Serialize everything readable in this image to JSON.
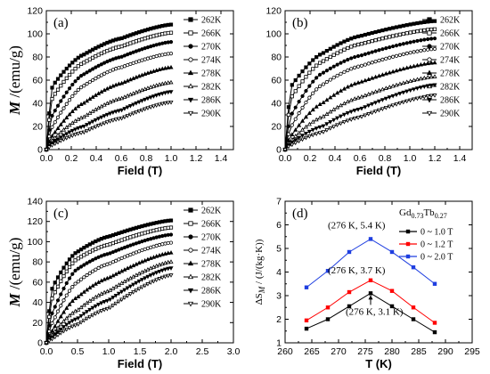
{
  "chart_data": [
    {
      "id": "a",
      "type": "line",
      "panel_label": "(a)",
      "xlabel": "Field (T)",
      "ylabel_var": "M",
      "ylabel_unit": "/(emu/g)",
      "xlim": [
        0.0,
        1.5
      ],
      "ylim": [
        0,
        120
      ],
      "xticks": [
        "0.0",
        "0.2",
        "0.4",
        "0.6",
        "0.8",
        "1.0",
        "1.2",
        "1.4"
      ],
      "yticks": [
        "0",
        "20",
        "40",
        "60",
        "80",
        "100",
        "120"
      ],
      "x_max_data": 1.0,
      "legend_placement": "top-right",
      "series": [
        {
          "name": "262K",
          "marker": "square-filled",
          "h": [
            0.05,
            0.3,
            0.6,
            1.0
          ],
          "m": [
            55,
            82,
            96,
            108
          ]
        },
        {
          "name": "266K",
          "marker": "square-open",
          "h": [
            0.05,
            0.3,
            0.6,
            1.0
          ],
          "m": [
            45,
            75,
            89,
            101
          ]
        },
        {
          "name": "270K",
          "marker": "circle-filled",
          "h": [
            0.05,
            0.3,
            0.6,
            1.0
          ],
          "m": [
            30,
            65,
            80,
            93
          ]
        },
        {
          "name": "274K",
          "marker": "circle-open",
          "h": [
            0.05,
            0.3,
            0.6,
            1.0
          ],
          "m": [
            20,
            55,
            71,
            83
          ]
        },
        {
          "name": "278K",
          "marker": "triangle-up-filled",
          "h": [
            0.05,
            0.3,
            0.6,
            1.0
          ],
          "m": [
            12,
            40,
            57,
            71
          ]
        },
        {
          "name": "282K",
          "marker": "triangle-up-open",
          "h": [
            0.05,
            0.3,
            0.6,
            1.0
          ],
          "m": [
            8,
            28,
            44,
            58
          ]
        },
        {
          "name": "286K",
          "marker": "triangle-down-filled",
          "h": [
            0.05,
            0.3,
            0.6,
            1.0
          ],
          "m": [
            6,
            20,
            34,
            50
          ]
        },
        {
          "name": "290K",
          "marker": "triangle-down-open",
          "h": [
            0.05,
            0.3,
            0.6,
            1.0
          ],
          "m": [
            4,
            15,
            27,
            41
          ]
        }
      ]
    },
    {
      "id": "b",
      "type": "line",
      "panel_label": "(b)",
      "xlabel": "Field (T)",
      "ylabel_var": "",
      "ylabel_unit": "",
      "xlim": [
        0.0,
        1.5
      ],
      "ylim": [
        0,
        120
      ],
      "xticks": [
        "0.0",
        "0.2",
        "0.4",
        "0.6",
        "0.8",
        "1.0",
        "1.2",
        "1.4"
      ],
      "yticks": [
        "0",
        "20",
        "40",
        "60",
        "80",
        "100",
        "120"
      ],
      "x_max_data": 1.2,
      "legend_placement": "top-right",
      "series": [
        {
          "name": "262K",
          "marker": "square-filled",
          "h": [
            0.05,
            0.3,
            0.6,
            1.2
          ],
          "m": [
            55,
            83,
            98,
            111
          ]
        },
        {
          "name": "266K",
          "marker": "square-open",
          "h": [
            0.05,
            0.3,
            0.6,
            1.2
          ],
          "m": [
            45,
            76,
            91,
            104
          ]
        },
        {
          "name": "270K",
          "marker": "circle-filled",
          "h": [
            0.05,
            0.3,
            0.6,
            1.2
          ],
          "m": [
            30,
            66,
            81,
            96
          ]
        },
        {
          "name": "274K",
          "marker": "circle-open",
          "h": [
            0.05,
            0.3,
            0.6,
            1.2
          ],
          "m": [
            20,
            56,
            72,
            87
          ]
        },
        {
          "name": "278K",
          "marker": "triangle-up-filled",
          "h": [
            0.05,
            0.3,
            0.6,
            1.2
          ],
          "m": [
            12,
            40,
            58,
            75
          ]
        },
        {
          "name": "282K",
          "marker": "triangle-up-open",
          "h": [
            0.05,
            0.3,
            0.6,
            1.2
          ],
          "m": [
            8,
            28,
            45,
            63
          ]
        },
        {
          "name": "286K",
          "marker": "triangle-down-filled",
          "h": [
            0.05,
            0.3,
            0.6,
            1.2
          ],
          "m": [
            6,
            20,
            35,
            56
          ]
        },
        {
          "name": "290K",
          "marker": "triangle-down-open",
          "h": [
            0.05,
            0.3,
            0.6,
            1.2
          ],
          "m": [
            4,
            15,
            28,
            47
          ]
        }
      ]
    },
    {
      "id": "c",
      "type": "line",
      "panel_label": "(c)",
      "xlabel": "Field (T)",
      "ylabel_var": "M",
      "ylabel_unit": "/(emu/g)",
      "xlim": [
        0.0,
        3.0
      ],
      "ylim": [
        0,
        140
      ],
      "xticks": [
        "0.0",
        "0.5",
        "1.0",
        "1.5",
        "2.0",
        "2.5",
        "3.0"
      ],
      "yticks": [
        "0",
        "20",
        "40",
        "60",
        "80",
        "100",
        "120",
        "140"
      ],
      "x_max_data": 2.0,
      "legend_placement": "top-right",
      "series": [
        {
          "name": "262K",
          "marker": "square-filled",
          "h": [
            0.1,
            0.5,
            1.0,
            2.0
          ],
          "m": [
            55,
            90,
            105,
            121
          ]
        },
        {
          "name": "266K",
          "marker": "square-open",
          "h": [
            0.1,
            0.5,
            1.0,
            2.0
          ],
          "m": [
            45,
            83,
            97,
            114
          ]
        },
        {
          "name": "270K",
          "marker": "circle-filled",
          "h": [
            0.1,
            0.5,
            1.0,
            2.0
          ],
          "m": [
            30,
            73,
            88,
            107
          ]
        },
        {
          "name": "274K",
          "marker": "circle-open",
          "h": [
            0.1,
            0.5,
            1.0,
            2.0
          ],
          "m": [
            20,
            60,
            78,
            99
          ]
        },
        {
          "name": "278K",
          "marker": "triangle-up-filled",
          "h": [
            0.1,
            0.5,
            1.0,
            2.0
          ],
          "m": [
            12,
            45,
            64,
            89
          ]
        },
        {
          "name": "282K",
          "marker": "triangle-up-open",
          "h": [
            0.1,
            0.5,
            1.0,
            2.0
          ],
          "m": [
            8,
            32,
            51,
            80
          ]
        },
        {
          "name": "286K",
          "marker": "triangle-down-filled",
          "h": [
            0.1,
            0.5,
            1.0,
            2.0
          ],
          "m": [
            6,
            24,
            42,
            74
          ]
        },
        {
          "name": "290K",
          "marker": "triangle-down-open",
          "h": [
            0.1,
            0.5,
            1.0,
            2.0
          ],
          "m": [
            4,
            18,
            34,
            67
          ]
        }
      ]
    },
    {
      "id": "d",
      "type": "line",
      "panel_label": "(d)",
      "xlabel": "T (K)",
      "ylabel": "ΔS",
      "ylabel_sub": "M",
      "ylabel_unit": " / (J/(kg·K))",
      "xlim": [
        260,
        295
      ],
      "ylim": [
        1,
        7
      ],
      "xticks": [
        "260",
        "265",
        "270",
        "275",
        "280",
        "285",
        "290",
        "295"
      ],
      "yticks": [
        "1",
        "2",
        "3",
        "4",
        "5",
        "6",
        "7"
      ],
      "sample_label": {
        "base": "Gd",
        "sub1": "0.73",
        "mid": "Tb",
        "sub2": "0.27"
      },
      "legend_placement": "top-right",
      "series": [
        {
          "name": "0 ~ 1.0 T",
          "color": "#000000",
          "x": [
            264,
            268,
            272,
            276,
            280,
            284,
            288
          ],
          "y": [
            1.6,
            2.0,
            2.55,
            3.1,
            2.55,
            2.0,
            1.45
          ]
        },
        {
          "name": "0 ~ 1.2 T",
          "color": "#ff0000",
          "x": [
            264,
            268,
            272,
            276,
            280,
            284,
            288
          ],
          "y": [
            1.95,
            2.5,
            3.15,
            3.65,
            3.2,
            2.5,
            1.85
          ]
        },
        {
          "name": "0 ~ 2.0 T",
          "color": "#1f3fe0",
          "x": [
            264,
            268,
            272,
            276,
            280,
            284,
            288
          ],
          "y": [
            3.35,
            4.05,
            4.85,
            5.4,
            4.85,
            4.2,
            3.5
          ]
        }
      ],
      "annotations": [
        {
          "text": "(276 K, 5.4 K)",
          "x": 276,
          "y": 5.4
        },
        {
          "text": "(276 K, 3.7 K)",
          "x": 276,
          "y": 3.65
        },
        {
          "text": "(276 K, 3.1 K)",
          "x": 276,
          "y": 3.1
        }
      ]
    }
  ]
}
